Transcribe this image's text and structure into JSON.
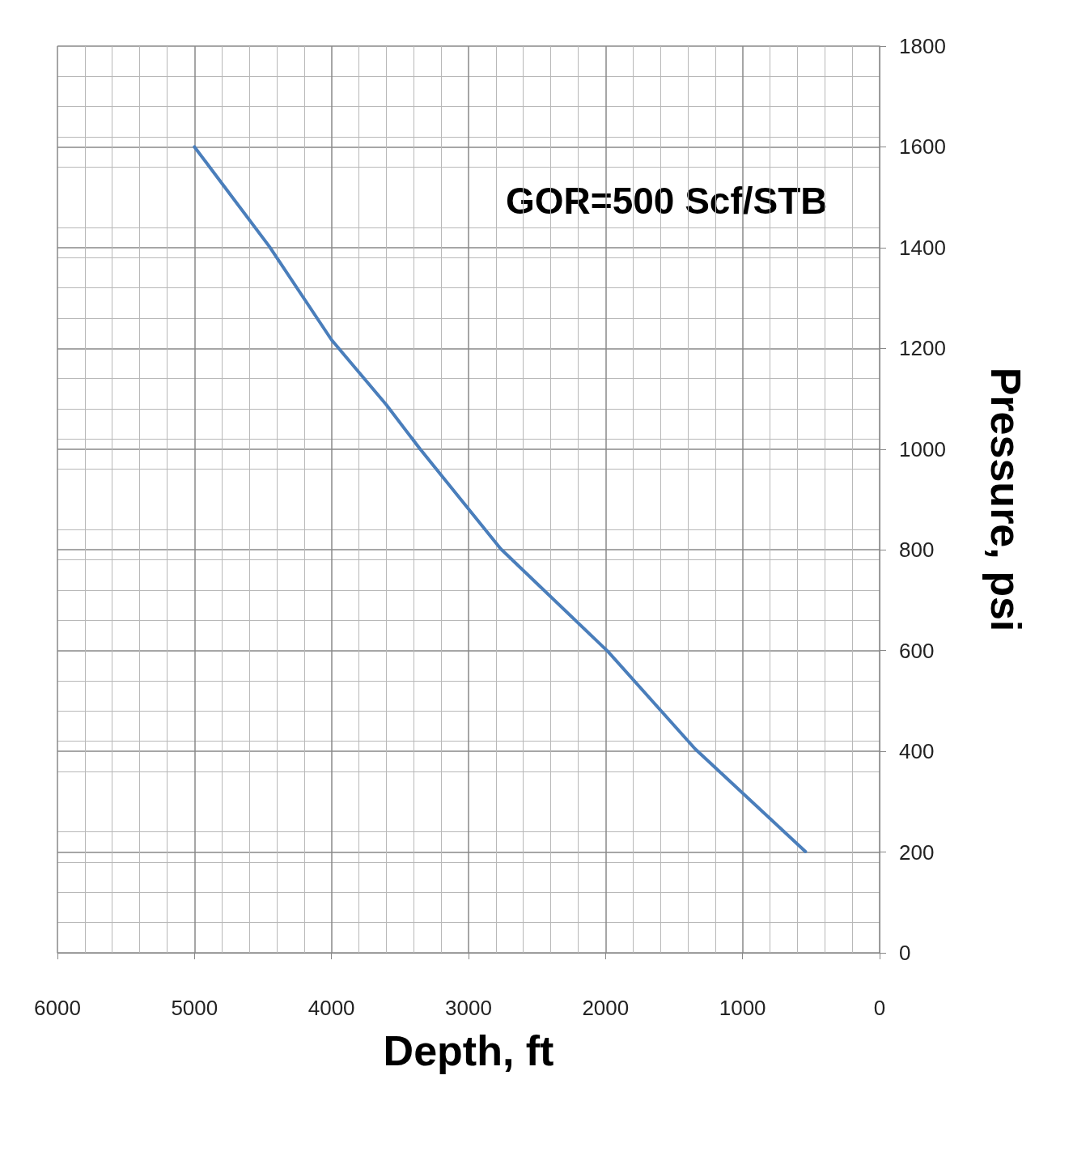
{
  "chart_data": {
    "type": "line",
    "xlabel": "Depth, ft",
    "ylabel": "Pressure, psi",
    "annotations": [
      "GOR=500 Scf/STB"
    ],
    "series": [
      {
        "color": "#4a7ebb",
        "x": [
          5000,
          4453,
          4000,
          3600,
          3353,
          2765,
          1982,
          1347,
          541
        ],
        "values": [
          1600,
          1402,
          1217,
          1088,
          1000,
          802,
          598,
          405,
          201
        ]
      }
    ],
    "xlim": [
      6000,
      0
    ],
    "xticks": [
      6000,
      5000,
      4000,
      3000,
      2000,
      1000,
      0
    ],
    "ylim": [
      0,
      1800
    ],
    "yticks": [
      0,
      200,
      400,
      600,
      800,
      1000,
      1200,
      1400,
      1600,
      1800
    ],
    "grid": true,
    "marker": "none",
    "line_style": "solid"
  }
}
